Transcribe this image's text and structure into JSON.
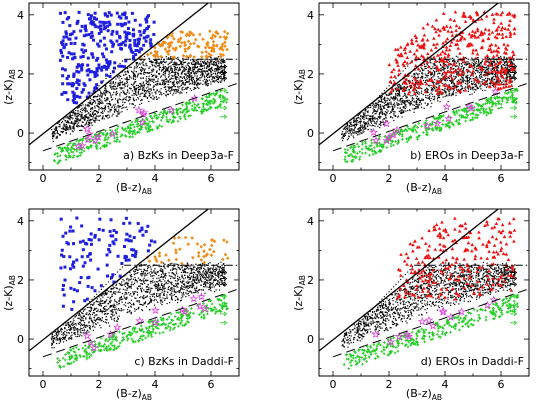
{
  "chart_data": [
    {
      "type": "scatter",
      "panel_label": "a) BzKs in Deep3a-F",
      "xlabel": {
        "main": "(B-z)",
        "sub": "AB"
      },
      "ylabel": {
        "main": "(z-K)",
        "sub": "AB"
      },
      "xlim": [
        -0.5,
        7.0
      ],
      "ylim": [
        -1.25,
        4.4
      ],
      "x_ticks": [
        "0",
        "2",
        "4",
        "6"
      ],
      "y_ticks": [
        "0",
        "2",
        "4"
      ],
      "lines": [
        {
          "name": "",
          "style": "solid",
          "x": [
            -0.5,
            7.0
          ],
          "y": [
            -0.4,
            5.225
          ]
        },
        {
          "name": "",
          "style": "dotted",
          "x": [
            0.9,
            2.9
          ],
          "y": [
            0.5,
            2.5
          ]
        },
        {
          "name": "",
          "style": "dash-dot",
          "x": [
            2.9,
            7.0
          ],
          "y": [
            2.5,
            2.5
          ]
        },
        {
          "name": "",
          "style": "dashed",
          "x": [
            0.0,
            7.0
          ],
          "y": [
            -0.6,
            1.7
          ]
        }
      ],
      "series": [
        {
          "name": "",
          "marker": "dot",
          "color": "#000000",
          "count": 1800,
          "region": "between solid line and dashed line, below z-K=2.5, B-z 0.3-6.5"
        },
        {
          "name": "",
          "marker": "square",
          "color": "#1f1fe0",
          "count": 300,
          "region": "above solid line, B-z 0.6-4.0, z-K 1.0-4.1"
        },
        {
          "name": "",
          "marker": "diamond",
          "color": "#f08c1a",
          "count": 130,
          "region": "below solid line, above z-K=2.5, B-z 2.8-6.5"
        },
        {
          "name": "",
          "marker": "cross",
          "color": "#22cc22",
          "count": 380,
          "region": "below dashed line, B-z 0.4-6.6"
        },
        {
          "name": "",
          "marker": "star",
          "color": "#dd44dd",
          "count": 14,
          "region": "around dashed line, B-z 1.2-6"
        }
      ],
      "limit_arrows": {
        "direction": "right",
        "x": 6.5,
        "note": "right-pointing arrows at x≈6.5 for lower limits in B-z"
      }
    },
    {
      "type": "scatter",
      "panel_label": "b) EROs in Deep3a-F",
      "xlabel": {
        "main": "(B-z)",
        "sub": "AB"
      },
      "ylabel": {
        "main": "(z-K)",
        "sub": "AB"
      },
      "xlim": [
        -0.5,
        7.0
      ],
      "ylim": [
        -1.25,
        4.4
      ],
      "x_ticks": [
        "0",
        "2",
        "4",
        "6"
      ],
      "y_ticks": [
        "0",
        "2",
        "4"
      ],
      "lines": [
        {
          "name": "",
          "style": "solid",
          "x": [
            -0.5,
            7.0
          ],
          "y": [
            -0.4,
            5.225
          ]
        },
        {
          "name": "",
          "style": "dotted",
          "x": [
            0.9,
            2.9
          ],
          "y": [
            0.5,
            2.5
          ]
        },
        {
          "name": "",
          "style": "dash-dot",
          "x": [
            2.9,
            7.0
          ],
          "y": [
            2.5,
            2.5
          ]
        },
        {
          "name": "",
          "style": "dashed",
          "x": [
            0.0,
            7.0
          ],
          "y": [
            -0.6,
            1.7
          ]
        }
      ],
      "series": [
        {
          "name": "",
          "marker": "dot",
          "color": "#000000",
          "count": 1800,
          "region": "between solid line and dashed line"
        },
        {
          "name": "",
          "marker": "triangle",
          "color": "#ee1111",
          "count": 420,
          "region": "z-K above about 1.3-4.1, B-z 2.0-6.5"
        },
        {
          "name": "",
          "marker": "cross",
          "color": "#22cc22",
          "count": 380,
          "region": "below dashed line"
        },
        {
          "name": "",
          "marker": "star",
          "color": "#dd44dd",
          "count": 14,
          "region": "around dashed line"
        }
      ],
      "limit_arrows": {
        "direction": "right",
        "x": 6.5,
        "note": "right-pointing arrows at x≈6.5"
      }
    },
    {
      "type": "scatter",
      "panel_label": "c) BzKs in Daddi-F",
      "xlabel": {
        "main": "(B-z)",
        "sub": "AB"
      },
      "ylabel": {
        "main": "(z-K)",
        "sub": "AB"
      },
      "xlim": [
        -0.5,
        7.0
      ],
      "ylim": [
        -1.25,
        4.4
      ],
      "x_ticks": [
        "0",
        "2",
        "4",
        "6"
      ],
      "y_ticks": [
        "0",
        "2",
        "4"
      ],
      "lines": [
        {
          "name": "",
          "style": "solid",
          "x": [
            -0.5,
            7.0
          ],
          "y": [
            -0.4,
            5.225
          ]
        },
        {
          "name": "",
          "style": "dotted",
          "x": [
            0.9,
            2.9
          ],
          "y": [
            0.5,
            2.5
          ]
        },
        {
          "name": "",
          "style": "dash-dot",
          "x": [
            2.9,
            7.0
          ],
          "y": [
            2.5,
            2.5
          ]
        },
        {
          "name": "",
          "style": "dashed",
          "x": [
            0.0,
            7.0
          ],
          "y": [
            -0.6,
            1.7
          ]
        }
      ],
      "series": [
        {
          "name": "",
          "marker": "dot",
          "color": "#000000",
          "count": 1500,
          "region": "between solid line and dashed line"
        },
        {
          "name": "",
          "marker": "square",
          "color": "#1f1fe0",
          "count": 120,
          "region": "above solid line"
        },
        {
          "name": "",
          "marker": "diamond",
          "color": "#f08c1a",
          "count": 45,
          "region": "below solid line, above z-K=2.5"
        },
        {
          "name": "",
          "marker": "cross",
          "color": "#22cc22",
          "count": 320,
          "region": "below dashed line"
        },
        {
          "name": "",
          "marker": "star",
          "color": "#dd44dd",
          "count": 14,
          "region": "around dashed line"
        }
      ],
      "limit_arrows": {
        "direction": "right",
        "x": 6.5,
        "note": "right-pointing arrows at x≈6.5"
      }
    },
    {
      "type": "scatter",
      "panel_label": "d) EROs in Daddi-F",
      "xlabel": {
        "main": "(B-z)",
        "sub": "AB"
      },
      "ylabel": {
        "main": "(z-K)",
        "sub": "AB"
      },
      "xlim": [
        -0.5,
        7.0
      ],
      "ylim": [
        -1.25,
        4.4
      ],
      "x_ticks": [
        "0",
        "2",
        "4",
        "6"
      ],
      "y_ticks": [
        "0",
        "2",
        "4"
      ],
      "lines": [
        {
          "name": "",
          "style": "solid",
          "x": [
            -0.5,
            7.0
          ],
          "y": [
            -0.4,
            5.225
          ]
        },
        {
          "name": "",
          "style": "dotted",
          "x": [
            0.9,
            2.9
          ],
          "y": [
            0.5,
            2.5
          ]
        },
        {
          "name": "",
          "style": "dash-dot",
          "x": [
            2.9,
            7.0
          ],
          "y": [
            2.5,
            2.5
          ]
        },
        {
          "name": "",
          "style": "dashed",
          "x": [
            0.0,
            7.0
          ],
          "y": [
            -0.6,
            1.7
          ]
        }
      ],
      "series": [
        {
          "name": "",
          "marker": "dot",
          "color": "#000000",
          "count": 1500,
          "region": "between solid line and dashed line"
        },
        {
          "name": "",
          "marker": "triangle",
          "color": "#ee1111",
          "count": 260,
          "region": "z-K above about 1.3, B-z 2.3-6.5"
        },
        {
          "name": "",
          "marker": "cross",
          "color": "#22cc22",
          "count": 320,
          "region": "below dashed line"
        },
        {
          "name": "",
          "marker": "star",
          "color": "#dd44dd",
          "count": 14,
          "region": "around dashed line"
        }
      ],
      "limit_arrows": {
        "direction": "right",
        "x": 6.5,
        "note": "right-pointing arrows at x≈6.5"
      }
    }
  ]
}
